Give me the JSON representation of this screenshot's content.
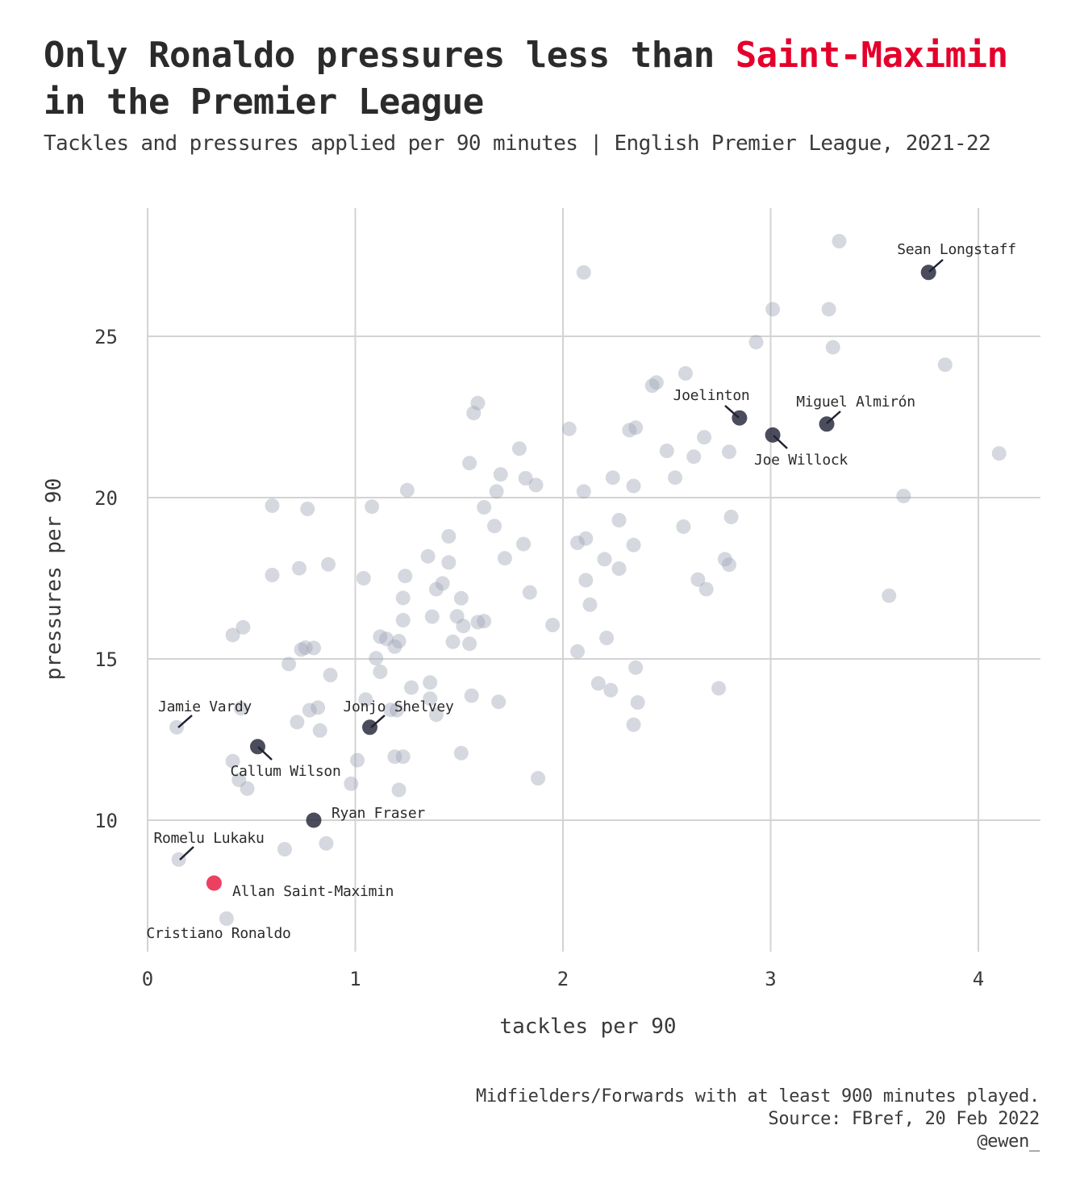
{
  "title": {
    "prefix": "Only Ronaldo pressures less than ",
    "highlight": "Saint-Maximin",
    "suffix": " in the Premier League"
  },
  "subtitle": "Tackles and pressures applied per 90 minutes | English Premier League, 2021-22",
  "caption": {
    "line1": "Midfielders/Forwards with at least 900 minutes played.",
    "line2": "Source: FBref, 20 Feb 2022",
    "line3": "@ewen_"
  },
  "colors": {
    "highlight": "#e4002b",
    "labeled": "#2b2e3f",
    "others": "#9ea3b5",
    "grid": "#d3d3d3"
  },
  "chart_data": {
    "type": "scatter",
    "xlabel": "tackles per 90",
    "ylabel": "pressures per 90",
    "xlim": [
      0,
      4.3
    ],
    "ylim": [
      6.0,
      29.0
    ],
    "xticks": [
      0,
      1,
      2,
      3,
      4
    ],
    "yticks": [
      10,
      15,
      20,
      25
    ],
    "grid": true,
    "legend": "none",
    "highlighted": [
      {
        "name": "Allan Saint-Maximin",
        "x": 0.32,
        "y": 8.05,
        "group": "highlight"
      },
      {
        "name": "Sean Longstaff",
        "x": 3.76,
        "y": 26.98,
        "group": "labeled"
      },
      {
        "name": "Joelinton",
        "x": 2.85,
        "y": 22.47,
        "group": "labeled"
      },
      {
        "name": "Miguel Almirón",
        "x": 3.27,
        "y": 22.28,
        "group": "labeled"
      },
      {
        "name": "Joe Willock",
        "x": 3.01,
        "y": 21.94,
        "group": "labeled"
      },
      {
        "name": "Jonjo Shelvey",
        "x": 1.07,
        "y": 12.88,
        "group": "labeled"
      },
      {
        "name": "Callum Wilson",
        "x": 0.53,
        "y": 12.28,
        "group": "labeled"
      },
      {
        "name": "Ryan Fraser",
        "x": 0.8,
        "y": 10.0,
        "group": "labeled"
      },
      {
        "name": "Jamie Vardy",
        "x": 0.14,
        "y": 12.88,
        "group": "other"
      },
      {
        "name": "Romelu Lukaku",
        "x": 0.15,
        "y": 8.78,
        "group": "other"
      },
      {
        "name": "Cristiano Ronaldo",
        "x": 0.38,
        "y": 6.95,
        "group": "other"
      }
    ],
    "others": [
      [
        3.33,
        27.95
      ],
      [
        2.1,
        26.98
      ],
      [
        3.01,
        25.84
      ],
      [
        3.28,
        25.84
      ],
      [
        2.93,
        24.82
      ],
      [
        3.3,
        24.66
      ],
      [
        3.84,
        24.12
      ],
      [
        2.59,
        23.85
      ],
      [
        2.45,
        23.57
      ],
      [
        2.43,
        23.47
      ],
      [
        1.59,
        22.93
      ],
      [
        1.57,
        22.62
      ],
      [
        2.03,
        22.13
      ],
      [
        2.35,
        22.17
      ],
      [
        2.32,
        22.09
      ],
      [
        2.68,
        21.87
      ],
      [
        1.79,
        21.52
      ],
      [
        2.5,
        21.45
      ],
      [
        2.8,
        21.42
      ],
      [
        2.63,
        21.27
      ],
      [
        4.1,
        21.37
      ],
      [
        1.55,
        21.07
      ],
      [
        1.7,
        20.72
      ],
      [
        2.24,
        20.62
      ],
      [
        1.82,
        20.6
      ],
      [
        2.54,
        20.62
      ],
      [
        1.87,
        20.39
      ],
      [
        2.34,
        20.36
      ],
      [
        1.25,
        20.23
      ],
      [
        1.68,
        20.19
      ],
      [
        2.1,
        20.19
      ],
      [
        3.64,
        20.05
      ],
      [
        0.6,
        19.75
      ],
      [
        0.77,
        19.65
      ],
      [
        1.08,
        19.72
      ],
      [
        1.62,
        19.7
      ],
      [
        2.81,
        19.4
      ],
      [
        2.27,
        19.3
      ],
      [
        1.67,
        19.12
      ],
      [
        2.58,
        19.1
      ],
      [
        1.45,
        18.8
      ],
      [
        2.11,
        18.73
      ],
      [
        2.07,
        18.6
      ],
      [
        1.81,
        18.56
      ],
      [
        2.34,
        18.53
      ],
      [
        1.35,
        18.18
      ],
      [
        1.72,
        18.12
      ],
      [
        2.2,
        18.09
      ],
      [
        2.78,
        18.09
      ],
      [
        1.45,
        17.99
      ],
      [
        0.87,
        17.93
      ],
      [
        2.8,
        17.92
      ],
      [
        0.73,
        17.81
      ],
      [
        2.27,
        17.8
      ],
      [
        0.6,
        17.6
      ],
      [
        1.24,
        17.57
      ],
      [
        1.04,
        17.5
      ],
      [
        2.65,
        17.46
      ],
      [
        2.11,
        17.44
      ],
      [
        1.42,
        17.34
      ],
      [
        1.39,
        17.16
      ],
      [
        2.69,
        17.16
      ],
      [
        1.84,
        17.06
      ],
      [
        3.57,
        16.96
      ],
      [
        1.51,
        16.88
      ],
      [
        1.23,
        16.89
      ],
      [
        2.13,
        16.68
      ],
      [
        1.37,
        16.31
      ],
      [
        1.49,
        16.32
      ],
      [
        1.23,
        16.2
      ],
      [
        1.62,
        16.17
      ],
      [
        1.59,
        16.14
      ],
      [
        1.52,
        16.02
      ],
      [
        1.95,
        16.05
      ],
      [
        0.46,
        15.98
      ],
      [
        0.41,
        15.74
      ],
      [
        1.12,
        15.69
      ],
      [
        2.21,
        15.65
      ],
      [
        1.15,
        15.62
      ],
      [
        1.21,
        15.55
      ],
      [
        1.47,
        15.53
      ],
      [
        1.55,
        15.47
      ],
      [
        1.19,
        15.38
      ],
      [
        0.76,
        15.35
      ],
      [
        0.74,
        15.29
      ],
      [
        0.8,
        15.34
      ],
      [
        2.07,
        15.23
      ],
      [
        1.1,
        15.02
      ],
      [
        0.68,
        14.84
      ],
      [
        2.35,
        14.73
      ],
      [
        1.12,
        14.6
      ],
      [
        0.88,
        14.5
      ],
      [
        1.36,
        14.27
      ],
      [
        2.17,
        14.24
      ],
      [
        1.27,
        14.11
      ],
      [
        2.23,
        14.03
      ],
      [
        2.75,
        14.09
      ],
      [
        1.56,
        13.86
      ],
      [
        1.36,
        13.77
      ],
      [
        1.05,
        13.74
      ],
      [
        1.69,
        13.67
      ],
      [
        2.36,
        13.65
      ],
      [
        0.45,
        13.47
      ],
      [
        0.82,
        13.49
      ],
      [
        0.78,
        13.41
      ],
      [
        1.17,
        13.42
      ],
      [
        1.2,
        13.41
      ],
      [
        1.39,
        13.27
      ],
      [
        0.72,
        13.04
      ],
      [
        2.34,
        12.96
      ],
      [
        0.83,
        12.78
      ],
      [
        1.51,
        12.08
      ],
      [
        1.19,
        11.97
      ],
      [
        1.23,
        11.97
      ],
      [
        0.41,
        11.83
      ],
      [
        1.01,
        11.86
      ],
      [
        0.44,
        11.25
      ],
      [
        0.98,
        11.13
      ],
      [
        1.88,
        11.3
      ],
      [
        0.48,
        10.98
      ],
      [
        1.21,
        10.94
      ],
      [
        0.86,
        9.28
      ],
      [
        0.66,
        9.1
      ]
    ]
  }
}
